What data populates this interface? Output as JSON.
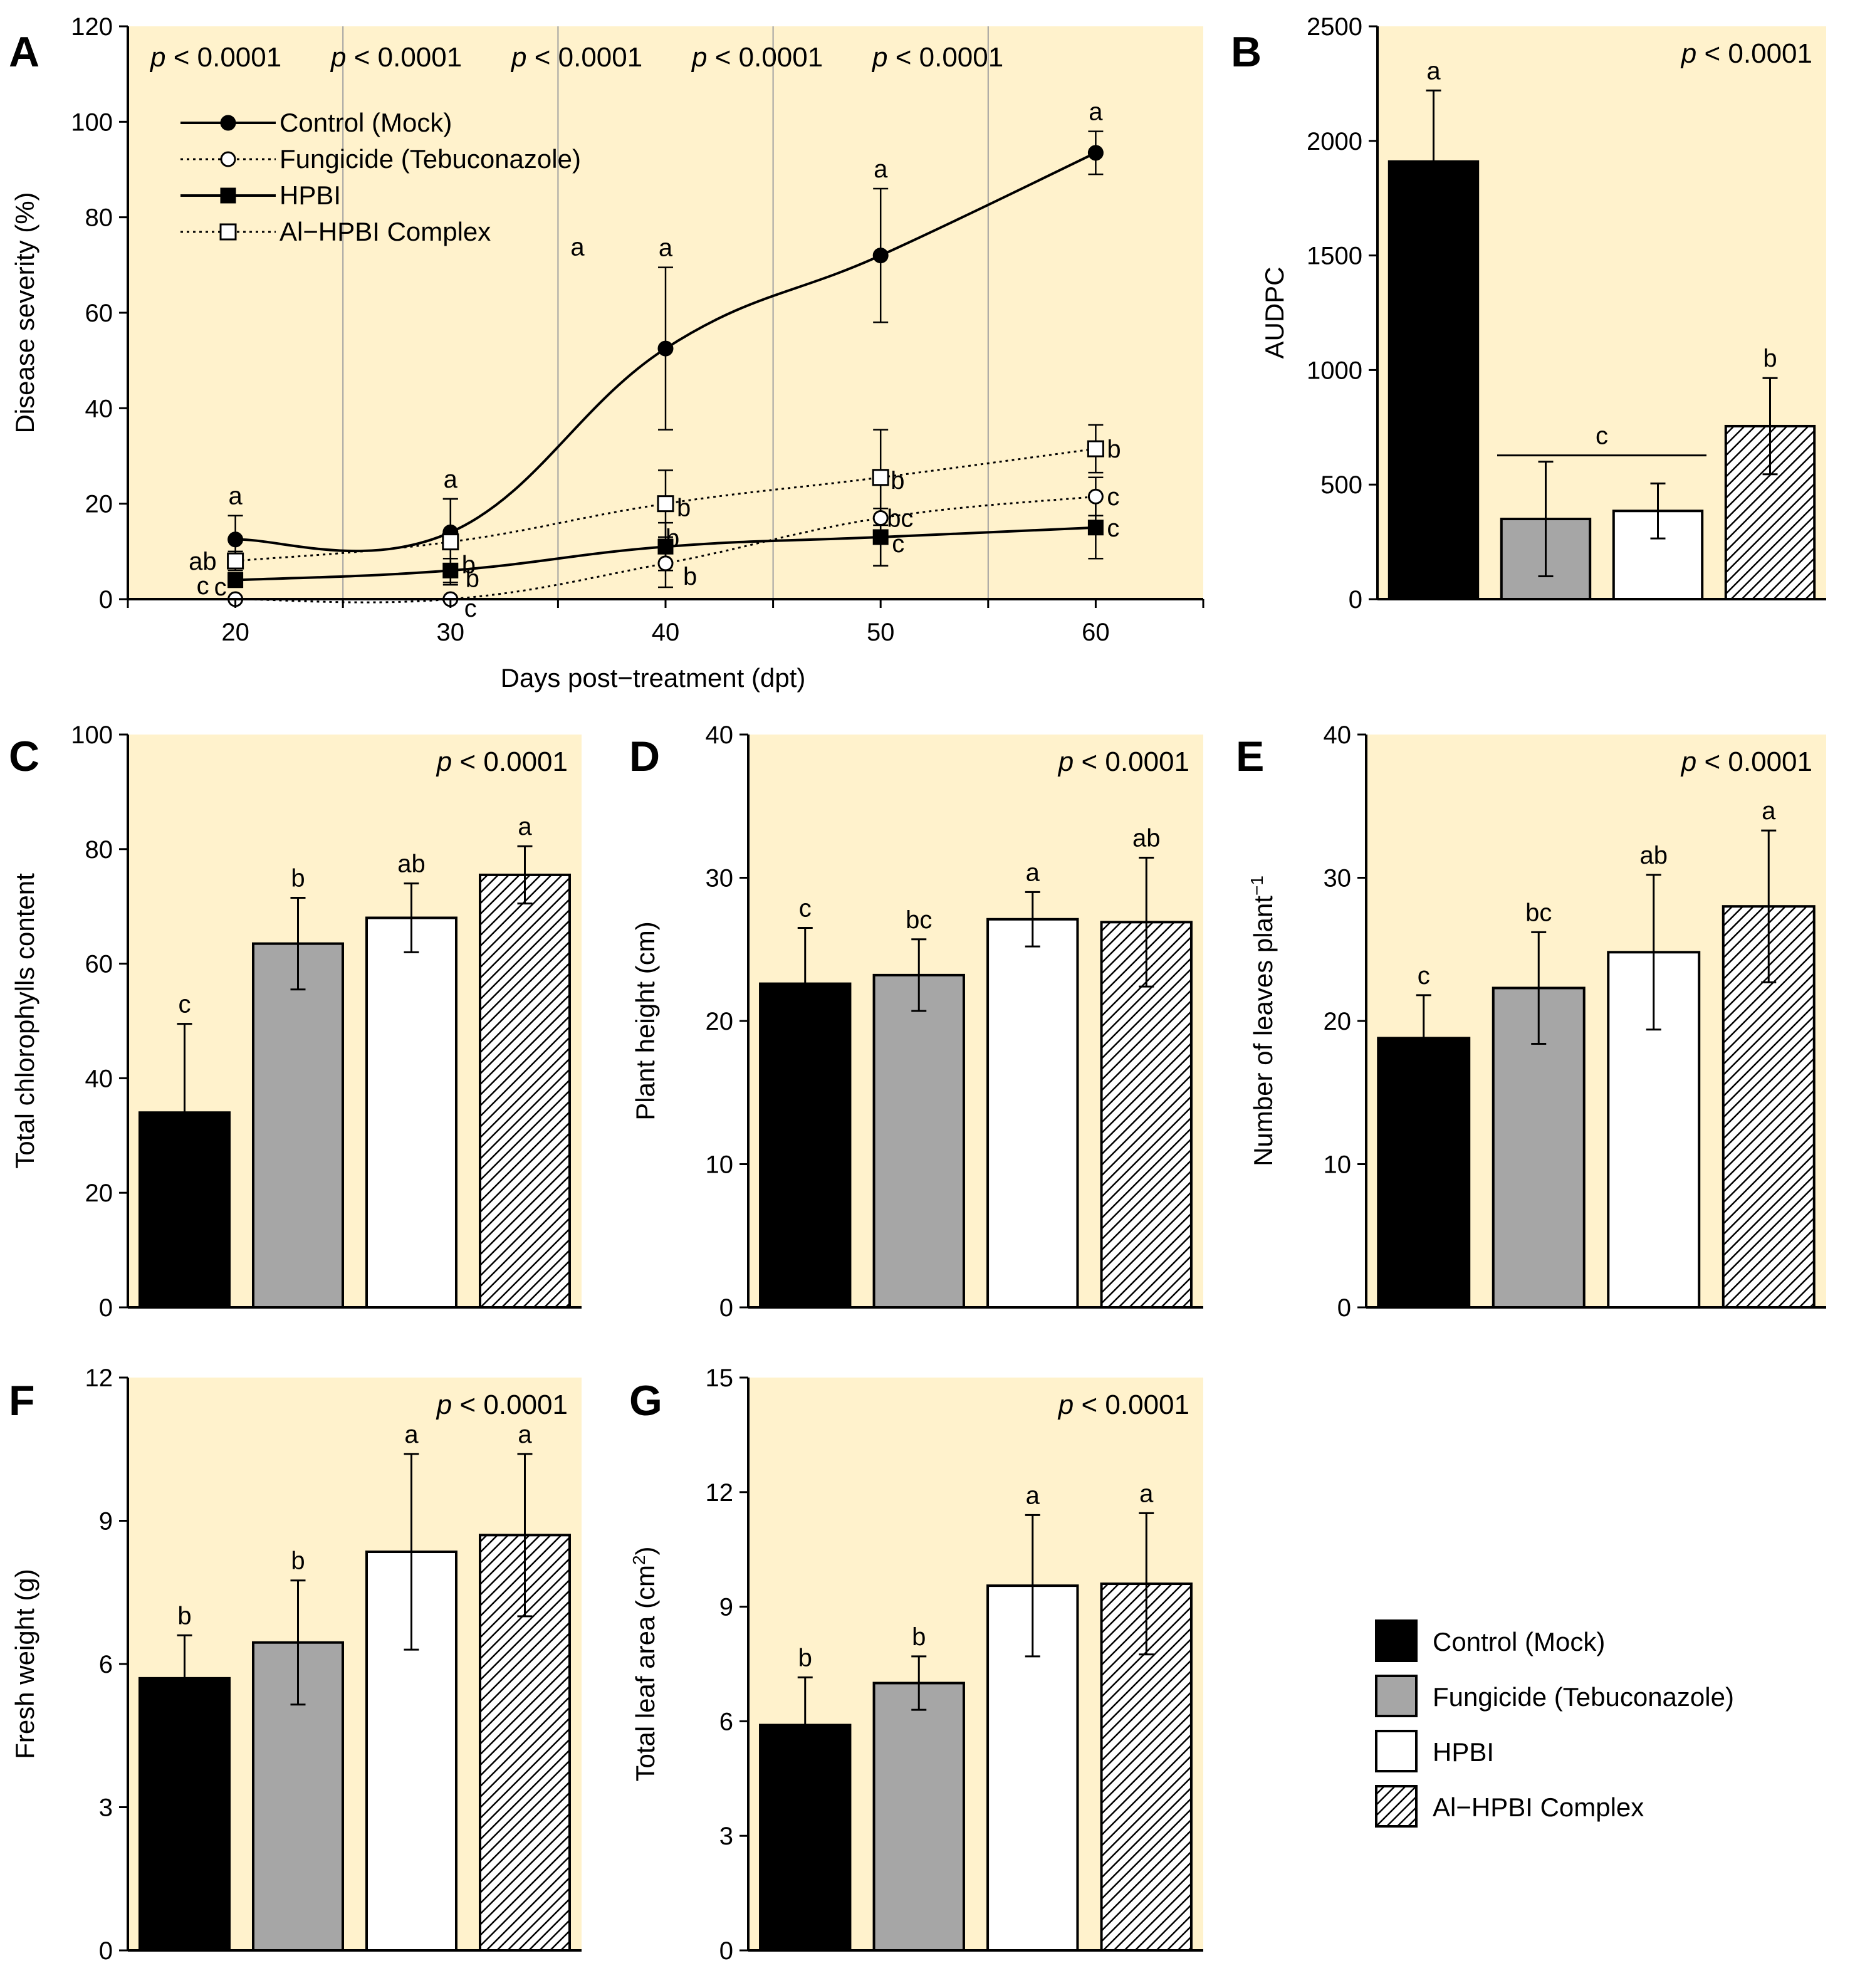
{
  "colors": {
    "panel_bg": "#FFF2CC",
    "control": "#000000",
    "fungicide": "#A6A6A6",
    "hpbi": "#FFFFFF",
    "complex_hatch": "#000000",
    "guide_line": "#A0A0A0"
  },
  "legend": {
    "items": [
      {
        "label": "Control (Mock)",
        "style": "solid-black"
      },
      {
        "label": "Fungicide (Tebuconazole)",
        "style": "solid-gray"
      },
      {
        "label": "HPBI",
        "style": "white"
      },
      {
        "label": "Al−HPBI Complex",
        "style": "hatched"
      }
    ]
  },
  "chart_data": [
    {
      "id": "A",
      "letter": "A",
      "type": "line",
      "xlabel": "Days post−treatment  (dpt)",
      "ylabel": "Disease severity (%)",
      "xlim": [
        15,
        65
      ],
      "ylim": [
        0,
        120
      ],
      "x": [
        20,
        30,
        40,
        50,
        60
      ],
      "xticks": [
        20,
        30,
        40,
        50,
        60
      ],
      "yticks": [
        0,
        20,
        40,
        60,
        80,
        100,
        120
      ],
      "p_labels": [
        "< 0.0001",
        "< 0.0001",
        "< 0.0001",
        "< 0.0001",
        "< 0.0001"
      ],
      "p_prefix": "p",
      "series": [
        {
          "name": "Control (Mock)",
          "marker": "filled-circle",
          "line": "solid",
          "values": [
            12.5,
            14,
            52.5,
            72,
            93.5
          ],
          "errors": [
            5,
            7,
            17,
            14,
            4.5
          ],
          "sig": [
            "a",
            "a",
            "a",
            "a",
            "a"
          ]
        },
        {
          "name": "Fungicide (Tebuconazole)",
          "marker": "open-circle",
          "line": "dotted",
          "values": [
            0,
            0,
            7.5,
            17,
            21.5
          ],
          "errors": [
            0,
            0,
            5,
            10,
            4
          ],
          "sig": [
            "c",
            "c",
            "b",
            "bc",
            "c"
          ]
        },
        {
          "name": "HPBI",
          "marker": "filled-square",
          "line": "solid",
          "values": [
            4,
            6,
            11,
            13,
            15
          ],
          "errors": [
            1.5,
            2.5,
            5,
            6,
            6.5
          ],
          "sig": [
            "c",
            "b",
            "b",
            "c",
            "c"
          ]
        },
        {
          "name": "Al−HPBI Complex",
          "marker": "open-square",
          "line": "dotted",
          "values": [
            8,
            12,
            20,
            25.5,
            31.5
          ],
          "errors": [
            2,
            9,
            7,
            10,
            5
          ],
          "sig": [
            "ab",
            "b",
            "b",
            "b",
            "b"
          ]
        }
      ],
      "stray_label": "a"
    },
    {
      "id": "B",
      "letter": "B",
      "type": "bar",
      "ylabel": "AUDPC",
      "ylim": [
        0,
        2500
      ],
      "yticks": [
        0,
        500,
        1000,
        1500,
        2000,
        2500
      ],
      "p_label": "< 0.0001",
      "p_prefix": "p",
      "categories": [
        "Control (Mock)",
        "Fungicide (Tebuconazole)",
        "HPBI",
        "Al−HPBI Complex"
      ],
      "values": [
        1910,
        350,
        385,
        755
      ],
      "errors": [
        310,
        250,
        120,
        210
      ],
      "sig": [
        "a",
        "",
        "",
        "b"
      ],
      "group_sig": {
        "label": "c",
        "from": 1,
        "to": 2
      }
    },
    {
      "id": "C",
      "letter": "C",
      "type": "bar",
      "ylabel": "Total chlorophylls content",
      "ylim": [
        0,
        100
      ],
      "yticks": [
        0,
        20,
        40,
        60,
        80,
        100
      ],
      "p_label": "< 0.0001",
      "p_prefix": "p",
      "categories": [
        "Control (Mock)",
        "Fungicide (Tebuconazole)",
        "HPBI",
        "Al−HPBI Complex"
      ],
      "values": [
        34,
        63.5,
        68,
        75.5
      ],
      "errors": [
        15.5,
        8,
        6,
        5
      ],
      "sig": [
        "c",
        "b",
        "ab",
        "a"
      ]
    },
    {
      "id": "D",
      "letter": "D",
      "type": "bar",
      "ylabel": "Plant height (cm)",
      "ylim": [
        0,
        40
      ],
      "yticks": [
        0,
        10,
        20,
        30,
        40
      ],
      "p_label": "< 0.0001",
      "p_prefix": "p",
      "categories": [
        "Control (Mock)",
        "Fungicide (Tebuconazole)",
        "HPBI",
        "Al−HPBI Complex"
      ],
      "values": [
        22.6,
        23.2,
        27.1,
        26.9
      ],
      "errors": [
        3.9,
        2.5,
        1.9,
        4.5
      ],
      "sig": [
        "c",
        "bc",
        "a",
        "ab"
      ]
    },
    {
      "id": "E",
      "letter": "E",
      "type": "bar",
      "ylabel": "Number of leaves plant",
      "ylabel_sup": "−1",
      "ylim": [
        0,
        40
      ],
      "yticks": [
        0,
        10,
        20,
        30,
        40
      ],
      "p_label": "< 0.0001",
      "p_prefix": "p",
      "categories": [
        "Control (Mock)",
        "Fungicide (Tebuconazole)",
        "HPBI",
        "Al−HPBI Complex"
      ],
      "values": [
        18.8,
        22.3,
        24.8,
        28.0
      ],
      "errors": [
        3.0,
        3.9,
        5.4,
        5.3
      ],
      "sig": [
        "c",
        "bc",
        "ab",
        "a"
      ]
    },
    {
      "id": "F",
      "letter": "F",
      "type": "bar",
      "ylabel": "Fresh weight (g)",
      "ylim": [
        0,
        12
      ],
      "yticks": [
        0,
        3,
        6,
        9,
        12
      ],
      "p_label": "< 0.0001",
      "p_prefix": "p",
      "categories": [
        "Control (Mock)",
        "Fungicide (Tebuconazole)",
        "HPBI",
        "Al−HPBI Complex"
      ],
      "values": [
        5.7,
        6.45,
        8.35,
        8.7
      ],
      "errors": [
        0.9,
        1.3,
        2.05,
        1.7
      ],
      "sig": [
        "b",
        "b",
        "a",
        "a"
      ]
    },
    {
      "id": "G",
      "letter": "G",
      "type": "bar",
      "ylabel": "Total leaf area (cm",
      "ylabel_sup": "2",
      "ylabel_end": ")",
      "ylim": [
        0,
        15
      ],
      "yticks": [
        0,
        3,
        6,
        9,
        12,
        15
      ],
      "p_label": "< 0.0001",
      "p_prefix": "p",
      "categories": [
        "Control (Mock)",
        "Fungicide (Tebuconazole)",
        "HPBI",
        "Al−HPBI Complex"
      ],
      "values": [
        5.9,
        7.0,
        9.55,
        9.6
      ],
      "errors": [
        1.25,
        0.7,
        1.85,
        1.85
      ],
      "sig": [
        "b",
        "b",
        "a",
        "a"
      ]
    }
  ]
}
